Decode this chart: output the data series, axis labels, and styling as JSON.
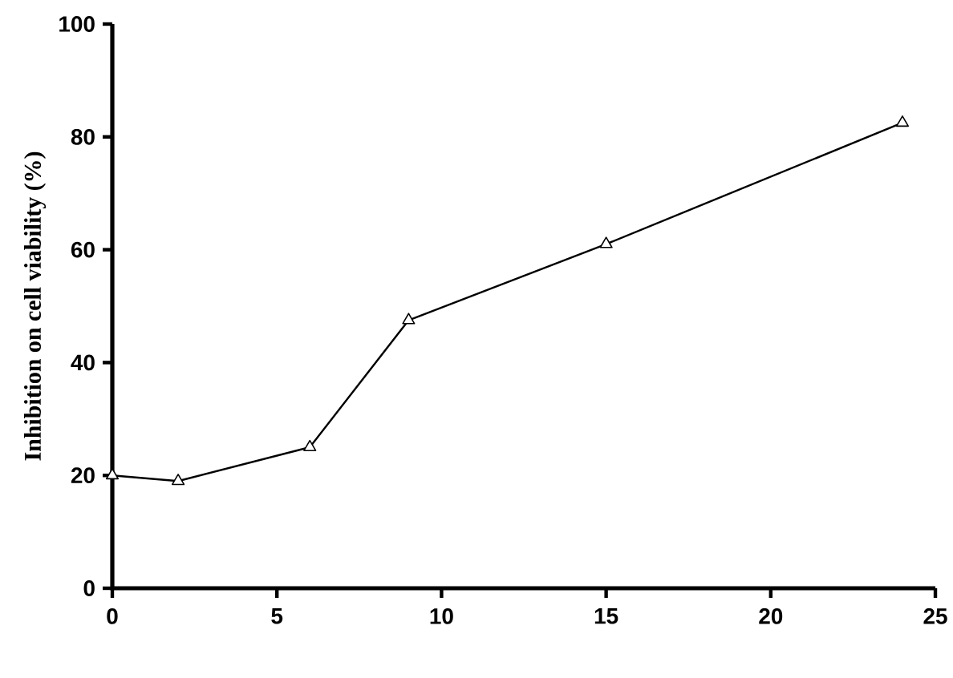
{
  "chart_data": {
    "type": "line",
    "ylabel": "Inhibition on cell viability (%)",
    "x": [
      0,
      2,
      6,
      9,
      15,
      24
    ],
    "values": [
      20,
      19,
      25,
      47.5,
      61,
      82.5
    ],
    "color": "#000000",
    "marker": "triangle",
    "xlim": [
      0,
      25
    ],
    "xticks": [
      0,
      5,
      10,
      15,
      20,
      25
    ],
    "ylim": [
      0,
      100
    ],
    "yticks": [
      0,
      20,
      40,
      60,
      80,
      100
    ]
  }
}
